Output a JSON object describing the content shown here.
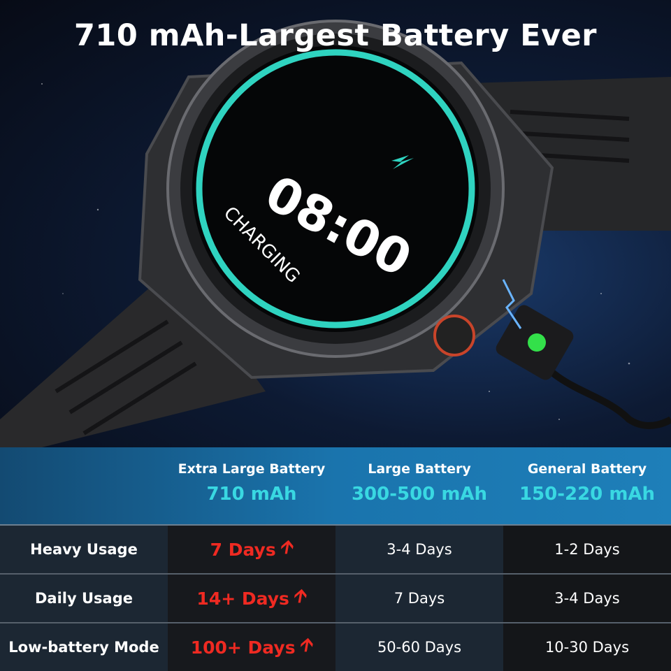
{
  "headline": "710 mAh-Largest Battery Ever",
  "watch": {
    "time": "08:00",
    "status": "CHARGING",
    "ring_color": "#2fd3c0",
    "charge_led_color": "#33e04a"
  },
  "comparison": {
    "columns": [
      {
        "name": "Extra Large Battery",
        "capacity": "710 mAh"
      },
      {
        "name": "Large Battery",
        "capacity": "300-500 mAh"
      },
      {
        "name": "General Battery",
        "capacity": "150-220 mAh"
      }
    ],
    "rows": [
      {
        "label": "Heavy Usage",
        "values": [
          "7 Days",
          "3-4 Days",
          "1-2 Days"
        ]
      },
      {
        "label": "Daily Usage",
        "values": [
          "14+ Days",
          "7 Days",
          "3-4 Days"
        ]
      },
      {
        "label": "Low-battery Mode",
        "values": [
          "100+ Days",
          "50-60 Days",
          "10-30 Days"
        ]
      }
    ],
    "highlight_color": "#ef2a22",
    "capacity_color": "#39d8e2",
    "arrow_icon": "up-arrow-icon"
  }
}
